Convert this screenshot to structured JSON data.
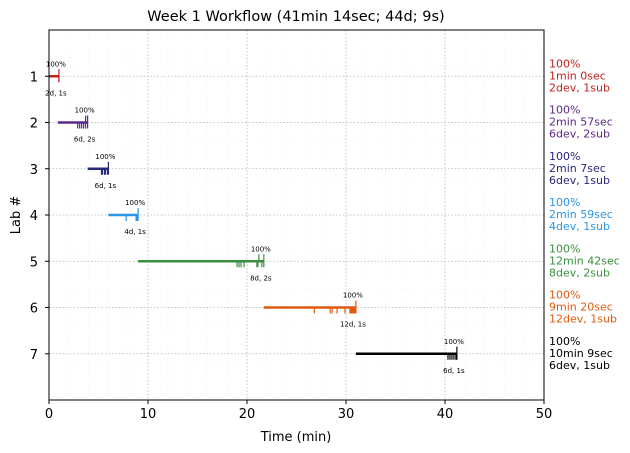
{
  "chart_data": {
    "type": "timeline",
    "title": "Week 1 Workflow (41min 14sec; 44d; 9s)",
    "xlabel": "Time (min)",
    "ylabel": "Lab #",
    "xlim": [
      0,
      50
    ],
    "ylim": [
      0,
      8
    ],
    "y_inverted": true,
    "grid": "on",
    "x_ticks": [
      0,
      10,
      20,
      30,
      40,
      50
    ],
    "y_ticks": [
      1,
      2,
      3,
      4,
      5,
      6,
      7
    ],
    "labs": [
      {
        "lab": "1",
        "start": 0.0,
        "end": 1.0,
        "percent": "100%",
        "counts": "2d, 1s",
        "dev_marks": [
          1.0,
          1.0
        ],
        "sub_marks": [
          1.0
        ],
        "summary": [
          "100%",
          "1min 0sec",
          "2dev, 1sub"
        ],
        "color": "#c0231f"
      },
      {
        "lab": "2",
        "start": 0.9,
        "end": 3.9,
        "percent": "100%",
        "counts": "6d, 2s",
        "dev_marks": [
          2.9,
          3.1,
          3.3,
          3.5,
          3.7,
          3.9
        ],
        "sub_marks": [
          3.7,
          3.9
        ],
        "summary": [
          "100%",
          "2min 57sec",
          "6dev, 2sub"
        ],
        "color": "#5b2a86"
      },
      {
        "lab": "3",
        "start": 3.9,
        "end": 6.0,
        "percent": "100%",
        "counts": "6d, 1s",
        "dev_marks": [
          5.3,
          5.4,
          5.6,
          5.7,
          5.9,
          6.0
        ],
        "sub_marks": [
          6.0
        ],
        "summary": [
          "100%",
          "2min 7sec",
          "6dev, 1sub"
        ],
        "color": "#27297a"
      },
      {
        "lab": "4",
        "start": 6.0,
        "end": 9.0,
        "percent": "100%",
        "counts": "4d, 1s",
        "dev_marks": [
          7.8,
          8.8,
          8.9,
          9.0
        ],
        "sub_marks": [
          9.0
        ],
        "summary": [
          "100%",
          "2min 59sec",
          "4dev, 1sub"
        ],
        "color": "#2b96e6"
      },
      {
        "lab": "5",
        "start": 9.0,
        "end": 21.7,
        "percent": "100%",
        "counts": "8d, 2s",
        "dev_marks": [
          19.0,
          19.2,
          19.4,
          19.7,
          21.0,
          21.1,
          21.5,
          21.7
        ],
        "sub_marks": [
          21.2,
          21.7
        ],
        "summary": [
          "100%",
          "12min 42sec",
          "8dev, 2sub"
        ],
        "color": "#3a8f3f"
      },
      {
        "lab": "6",
        "start": 21.7,
        "end": 31.0,
        "percent": "100%",
        "counts": "12d, 1s",
        "dev_marks": [
          26.8,
          28.4,
          28.6,
          29.1,
          29.9,
          30.4,
          30.5,
          30.6,
          30.7,
          30.8,
          30.9,
          31.0
        ],
        "sub_marks": [
          31.0
        ],
        "summary": [
          "100%",
          "9min 20sec",
          "12dev, 1sub"
        ],
        "color": "#e05a12"
      },
      {
        "lab": "7",
        "start": 31.0,
        "end": 41.2,
        "percent": "100%",
        "counts": "6d, 1s",
        "dev_marks": [
          40.3,
          40.5,
          40.7,
          40.9,
          41.1,
          41.2
        ],
        "sub_marks": [
          41.2
        ],
        "summary": [
          "100%",
          "10min 9sec",
          "6dev, 1sub"
        ],
        "color": "#000000"
      }
    ]
  }
}
